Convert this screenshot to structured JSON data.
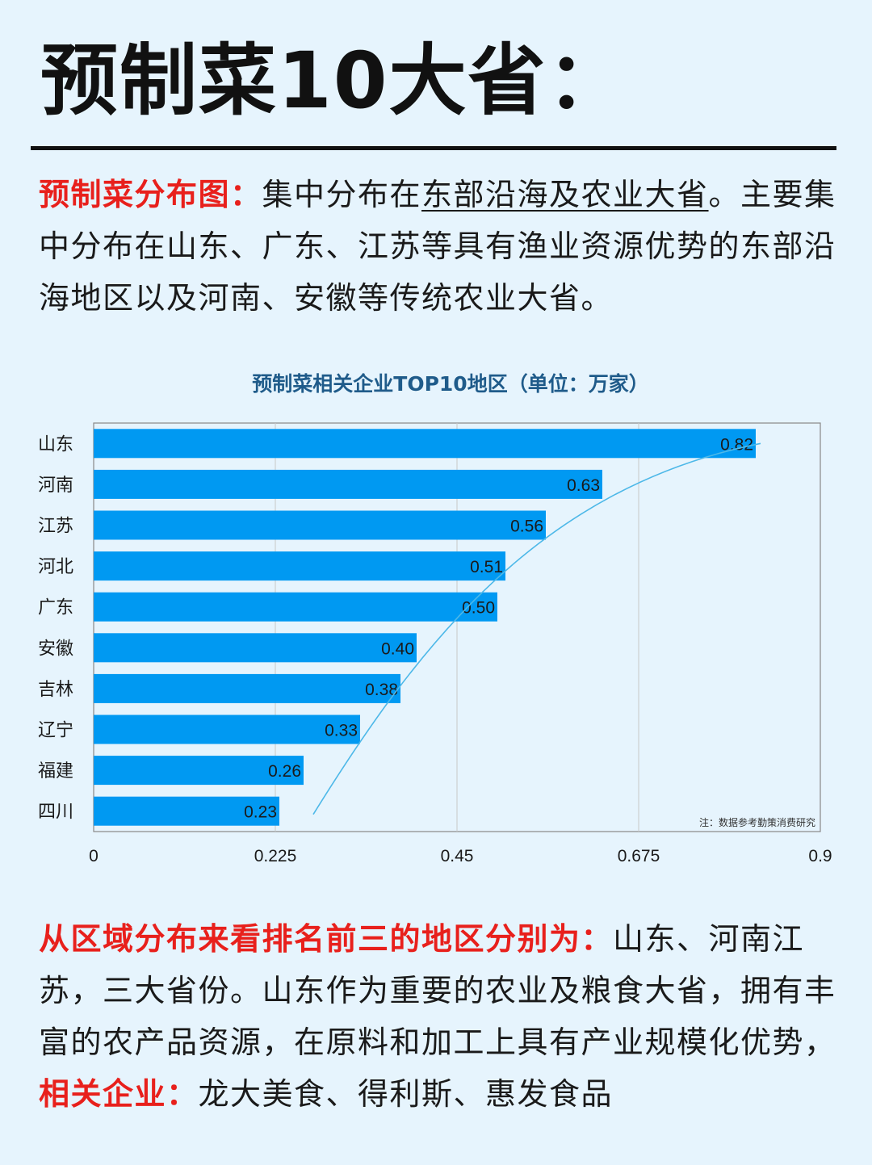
{
  "header": {
    "title": "预制菜10大省："
  },
  "intro": {
    "label": "预制菜分布图：",
    "text1": "集中分布在",
    "underlined": "东部沿海及农业大省",
    "text2": "。主要集中分布在山东、广东、江苏等具有渔业资源优势的东部沿海地区以及河南、安徽等传统农业大省。"
  },
  "chart_data": {
    "type": "bar",
    "orientation": "horizontal",
    "title": "预制菜相关企业TOP10地区（单位：万家）",
    "categories": [
      "山东",
      "河南",
      "江苏",
      "河北",
      "广东",
      "安徽",
      "吉林",
      "辽宁",
      "福建",
      "四川"
    ],
    "values": [
      0.82,
      0.63,
      0.56,
      0.51,
      0.5,
      0.4,
      0.38,
      0.33,
      0.26,
      0.23
    ],
    "value_labels": [
      "0.82",
      "0.63",
      "0.56",
      "0.51",
      "0.50",
      "0.40",
      "0.38",
      "0.33",
      "0.26",
      "0.23"
    ],
    "xlim": [
      0,
      0.9
    ],
    "xticks": [
      "0",
      "0.225",
      "0.45",
      "0.675",
      "0.9"
    ],
    "xtick_values": [
      0,
      0.225,
      0.45,
      0.675,
      0.9
    ],
    "grid": "vertical",
    "trendline": true,
    "note": "注：数据参考勤策消费研究",
    "colors": {
      "bar": "#0099f2",
      "trend": "#4db8e8",
      "title": "#1f5b8a",
      "grid": "#c8c8c8"
    }
  },
  "conclusion": {
    "label1": "从区域分布来看排名前三的地区分别为：",
    "text1": "山东、河南江苏，三大省份。山东作为重要的农业及粮食大省，拥有丰富的农产品资源，在原料和加工上具有产业规模化优势，",
    "label2": "相关企业：",
    "text2": "龙大美食、得利斯、惠发食品"
  },
  "colors": {
    "background": "#e6f4fd",
    "accent_red": "#e8201c",
    "rule": "#111111"
  }
}
